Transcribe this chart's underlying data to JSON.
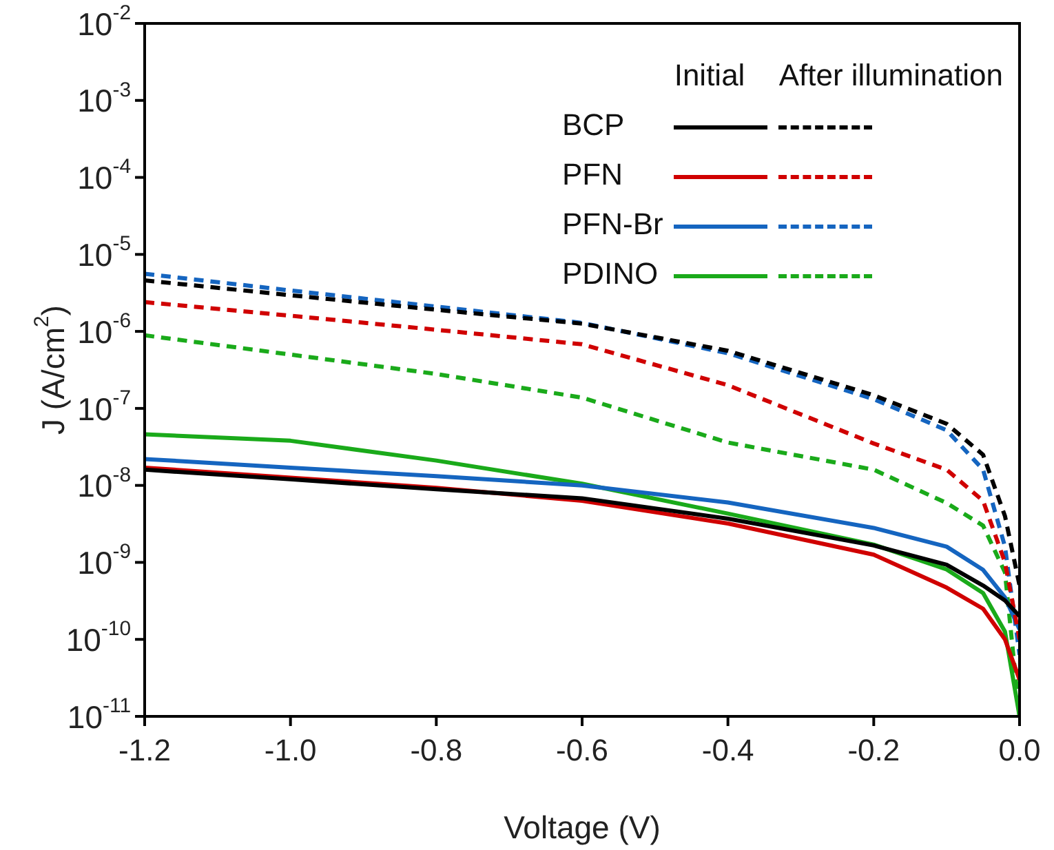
{
  "chart_data": {
    "type": "line",
    "xlabel": "Voltage (V)",
    "ylabel": "J (A/cm$^{2}$)",
    "log": "y",
    "legend": "top right",
    "grid": false,
    "marker": "none",
    "annotations": [
      "Initial",
      "After illumination"
    ],
    "x": [
      -1.2,
      -1.0,
      -0.8,
      -0.6,
      -0.4,
      -0.2,
      -0.1,
      -0.05,
      -0.02,
      0
    ],
    "xlim": [
      -1.2,
      0
    ],
    "xticks": [
      {
        "value": -1.2,
        "label": "-1.2"
      },
      {
        "value": -1,
        "label": "-1.0"
      },
      -0.8,
      -0.6,
      -0.4,
      -0.2,
      {
        "value": 0,
        "label": "0.0"
      }
    ],
    "ylim": [
      1e-11,
      0.01
    ],
    "yticks": [
      {
        "value": 1e-11,
        "label": "10$^{-11}$"
      },
      {
        "value": 1e-10,
        "label": "10$^{-10}$"
      },
      {
        "value": 1e-09,
        "label": "10$^{-9}$"
      },
      {
        "value": 1e-08,
        "label": "10$^{-8}$"
      },
      {
        "value": 1e-07,
        "label": "10$^{-7}$"
      },
      {
        "value": 1e-06,
        "label": "10$^{-6}$"
      },
      {
        "value": 1e-05,
        "label": "10$^{-5}$"
      },
      {
        "value": 0.0001,
        "label": "10$^{-4}$"
      },
      {
        "value": 0.001,
        "label": "10$^{-3}$"
      },
      {
        "value": 0.01,
        "label": "10$^{-2}$"
      }
    ],
    "series": [
      {
        "name": "BCP",
        "color": "#000000",
        "line_style": "solid",
        "values": [
          1.6e-08,
          1.2e-08,
          8.9e-09,
          6.8e-09,
          3.7e-09,
          1.66e-09,
          9.3e-10,
          5e-10,
          3.2e-10,
          2e-10
        ]
      },
      {
        "color": "#000000",
        "line_style": "dashed",
        "values": [
          4.6e-06,
          2.95e-06,
          1.91e-06,
          1.26e-06,
          5.6e-07,
          1.48e-07,
          6.3e-08,
          2.5e-08,
          4e-09,
          5e-10
        ]
      },
      {
        "name": "PFN",
        "color": "#d00000",
        "line_style": "solid",
        "values": [
          1.7e-08,
          1.26e-08,
          9.3e-09,
          6.3e-09,
          3.2e-09,
          1.26e-09,
          4.7e-10,
          2.5e-10,
          1e-10,
          3e-11
        ]
      },
      {
        "color": "#d00000",
        "line_style": "dashed",
        "values": [
          2.4e-06,
          1.6e-06,
          1.05e-06,
          6.8e-07,
          2e-07,
          3.5e-08,
          1.6e-08,
          6.3e-09,
          1e-09,
          1e-10
        ]
      },
      {
        "name": "PFN-Br",
        "color": "#1565c0",
        "line_style": "solid",
        "values": [
          2.2e-08,
          1.7e-08,
          1.32e-08,
          1e-08,
          6e-09,
          2.8e-09,
          1.6e-09,
          8e-10,
          3.5e-10,
          1.35e-10
        ]
      },
      {
        "color": "#1565c0",
        "line_style": "dashed",
        "values": [
          5.6e-06,
          3.4e-06,
          2.1e-06,
          1.29e-06,
          5.2e-07,
          1.32e-07,
          5.2e-08,
          1.6e-08,
          1.6e-09,
          6.3e-11
        ]
      },
      {
        "name": "PDINO",
        "color": "#1aaa1a",
        "line_style": "solid",
        "values": [
          4.6e-08,
          3.8e-08,
          2.1e-08,
          1.05e-08,
          4.3e-09,
          1.7e-09,
          8.1e-10,
          4e-10,
          1.26e-10,
          1e-11
        ]
      },
      {
        "color": "#1aaa1a",
        "line_style": "dashed",
        "values": [
          8.9e-07,
          5e-07,
          2.8e-07,
          1.38e-07,
          3.6e-08,
          1.6e-08,
          5.9e-09,
          3e-09,
          7.4e-10,
          1e-11
        ]
      }
    ]
  }
}
